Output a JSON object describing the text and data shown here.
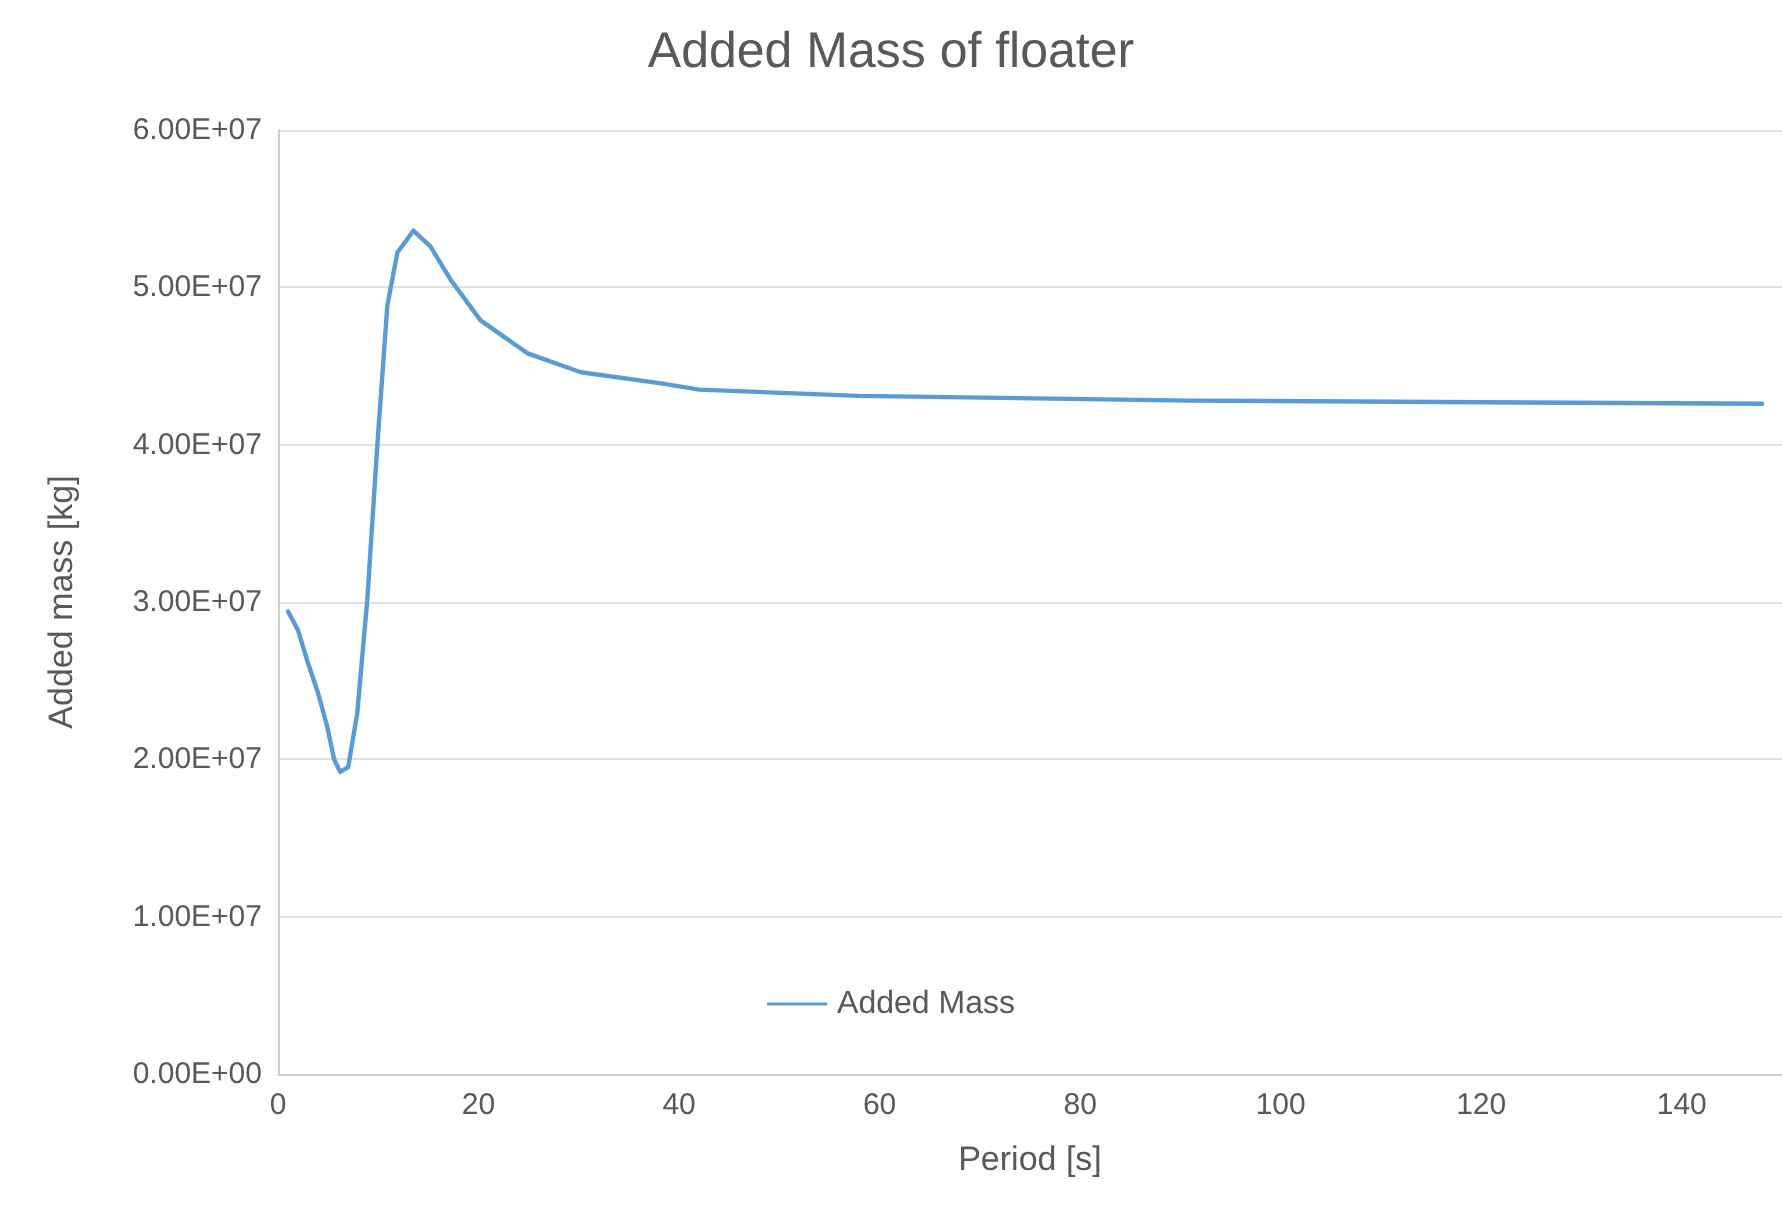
{
  "chart_data": {
    "type": "line",
    "title": "Added Mass of floater",
    "xlabel": "Period [s]",
    "ylabel": "Added mass [kg]",
    "series": [
      {
        "name": "Added Mass",
        "color": "#5b9bd5",
        "x": [
          1,
          2,
          2.9,
          4,
          4.9,
          5.6,
          6.2,
          7,
          7.9,
          8.9,
          9.9,
          10.9,
          11.9,
          13.5,
          15.2,
          17.2,
          20.2,
          24.9,
          30.2,
          38.2,
          42,
          57.9,
          91,
          148
        ],
        "values": [
          29400000,
          28200000,
          26300000,
          24200000,
          22100000,
          20000000,
          19200000,
          19500000,
          22900000,
          30100000,
          39900000,
          48800000,
          52200000,
          53600000,
          52600000,
          50500000,
          47900000,
          45800000,
          44600000,
          43900000,
          43500000,
          43100000,
          42800000,
          42600000
        ]
      }
    ],
    "xlim": [
      0,
      150
    ],
    "xticks": [
      0,
      20,
      40,
      60,
      80,
      100,
      120,
      140
    ],
    "ylim": [
      0,
      60000000
    ],
    "yticks": [
      {
        "value": 0,
        "label": "0.00E+00"
      },
      {
        "value": 10000000,
        "label": "1.00E+07"
      },
      {
        "value": 20000000,
        "label": "2.00E+07"
      },
      {
        "value": 30000000,
        "label": "3.00E+07"
      },
      {
        "value": 40000000,
        "label": "4.00E+07"
      },
      {
        "value": 50000000,
        "label": "5.00E+07"
      },
      {
        "value": 60000000,
        "label": "6.00E+07"
      }
    ],
    "grid": "y",
    "legend": "bottom",
    "marker": "none",
    "line_style": "solid"
  }
}
